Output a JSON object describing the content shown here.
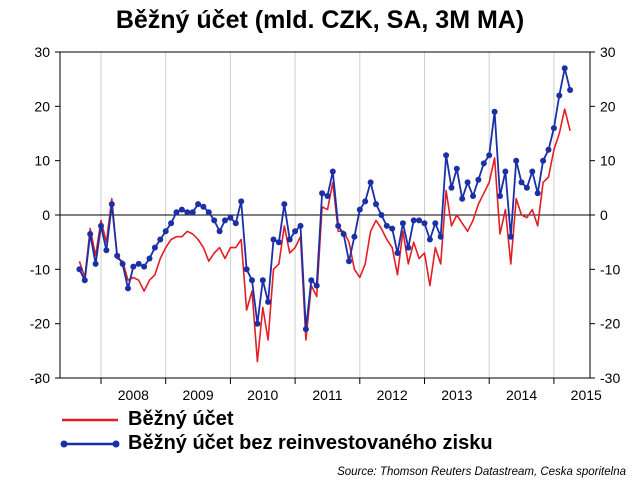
{
  "chart_data": {
    "type": "line",
    "title": "Běžný účet (mld. CZK, SA, 3M MA)",
    "xlabel": "",
    "ylabel": "",
    "ylim": [
      -30,
      30
    ],
    "yticks": [
      "30",
      "20",
      "10",
      "0",
      "-10",
      "-20",
      "-30"
    ],
    "yticks_right": [
      "30",
      "20",
      "10",
      "0",
      "-10",
      "-20",
      "-30"
    ],
    "x_tick_labels": [
      "2008",
      "2009",
      "2010",
      "2011",
      "2012",
      "2013",
      "2014",
      "2015"
    ],
    "x_start": "2007-09",
    "grid": "vertical",
    "legend_position": "bottom-left",
    "series": [
      {
        "name": "Běžný účet",
        "color": "#e31e24",
        "markers": false,
        "values": [
          -8.5,
          -11.5,
          -2.5,
          -7.5,
          -1,
          -5,
          3,
          -8,
          -8.5,
          -12,
          -11.5,
          -12,
          -14,
          -12,
          -11,
          -8,
          -6,
          -4.5,
          -4,
          -4,
          -3,
          -3.5,
          -4.5,
          -6,
          -8.5,
          -7,
          -6,
          -8,
          -6,
          -6,
          -4.5,
          -17.5,
          -14,
          -27,
          -17,
          -23,
          -10,
          -9,
          -2,
          -7,
          -6,
          -4,
          -23,
          -13,
          -15,
          1.5,
          1,
          6,
          -3,
          -3,
          -5,
          -10,
          -11.5,
          -9,
          -3,
          -1,
          -2.5,
          -4.5,
          -6,
          -11,
          -3,
          -9,
          -5,
          -8,
          -7,
          -13,
          -6,
          -9,
          4.5,
          -2,
          0,
          -1.5,
          -3,
          -1,
          2,
          4,
          6,
          10.5,
          -3.5,
          1,
          -9,
          3,
          0,
          -0.5,
          1,
          -2,
          6,
          7,
          12,
          15,
          19.5,
          15.5
        ]
      },
      {
        "name": "Běžný účet bez reinvestovaného zisku",
        "color": "#1b2fa6",
        "markers": true,
        "values": [
          -10,
          -12,
          -3.5,
          -9,
          -2,
          -6.5,
          2,
          -7.5,
          -9,
          -13.5,
          -9.5,
          -9,
          -9.5,
          -8,
          -6,
          -4.5,
          -3,
          -1.5,
          0.5,
          1,
          0.5,
          0.5,
          2,
          1.5,
          0.5,
          -1,
          -3,
          -1,
          -0.5,
          -1.5,
          2.5,
          -10,
          -12,
          -20,
          -12,
          -16,
          -4.5,
          -5,
          2,
          -4.5,
          -3,
          -2,
          -21,
          -12,
          -13,
          4,
          3.5,
          8,
          -2,
          -3.5,
          -8.5,
          -4,
          1,
          2.5,
          6,
          2,
          0,
          -2,
          -2.5,
          -7,
          -1.5,
          -6,
          -1,
          -1,
          -1.5,
          -4.5,
          -1.5,
          -4,
          11,
          5,
          8.5,
          3,
          6,
          3.5,
          6.5,
          9.5,
          11,
          19,
          3.5,
          8,
          -4,
          10,
          6,
          5,
          8,
          4,
          10,
          12,
          16,
          22,
          27,
          23
        ]
      }
    ]
  },
  "source": "Source: Thomson Reuters Datastream, Ceska sporitelna"
}
